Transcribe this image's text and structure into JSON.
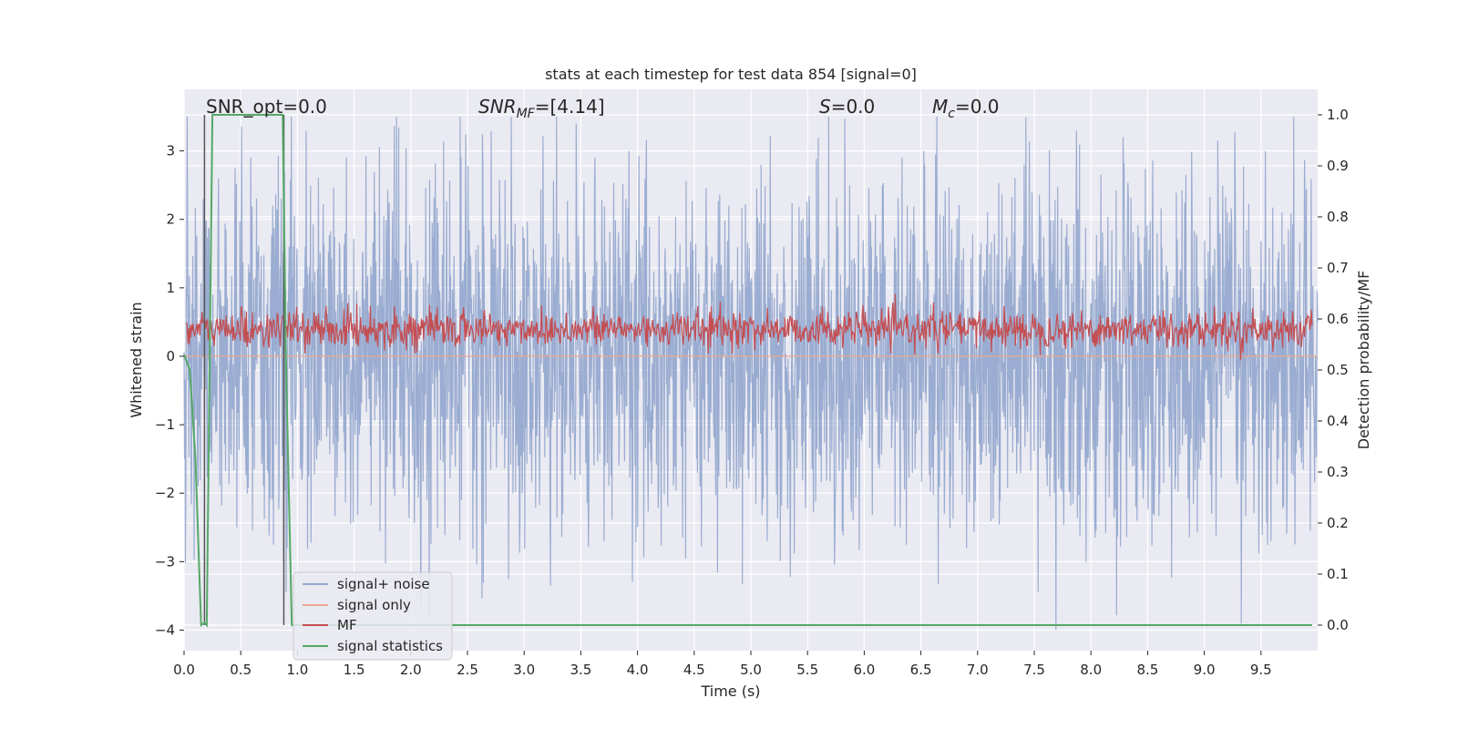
{
  "chart_data": {
    "type": "line",
    "title": "stats at each timestep for test data 854 [signal=0]",
    "xlabel": "Time (s)",
    "ylabel_left": "Whitened strain",
    "ylabel_right": "Detection probability/MF",
    "xlim": [
      0.0,
      10.0
    ],
    "ylim_left": [
      -4.3,
      3.9
    ],
    "ylim_right": [
      -0.05,
      1.05
    ],
    "xticks": [
      "0.0",
      "0.5",
      "1.0",
      "1.5",
      "2.0",
      "2.5",
      "3.0",
      "3.5",
      "4.0",
      "4.5",
      "5.0",
      "5.5",
      "6.0",
      "6.5",
      "7.0",
      "7.5",
      "8.0",
      "8.5",
      "9.0",
      "9.5"
    ],
    "xtick_values": [
      0,
      0.5,
      1,
      1.5,
      2,
      2.5,
      3,
      3.5,
      4,
      4.5,
      5,
      5.5,
      6,
      6.5,
      7,
      7.5,
      8,
      8.5,
      9,
      9.5
    ],
    "yticks_left": [
      "3",
      "2",
      "1",
      "0",
      "−1",
      "−2",
      "−3",
      "−4"
    ],
    "ytick_values_left": [
      3,
      2,
      1,
      0,
      -1,
      -2,
      -3,
      -4
    ],
    "yticks_right": [
      "1.0",
      "0.9",
      "0.8",
      "0.7",
      "0.6",
      "0.5",
      "0.4",
      "0.3",
      "0.2",
      "0.1",
      "0.0"
    ],
    "ytick_values_right": [
      1.0,
      0.9,
      0.8,
      0.7,
      0.6,
      0.5,
      0.4,
      0.3,
      0.2,
      0.1,
      0.0
    ],
    "annotations": {
      "snr_opt": "SNR_opt=0.0",
      "snr_mf_main": "SNR",
      "snr_mf_sub": "MF",
      "snr_mf_value": "=[4.14]",
      "s_main": "S",
      "s_value": "=0.0",
      "mc_main": "M",
      "mc_sub": "c",
      "mc_value": "=0.0"
    },
    "legend_placement": "lower-left",
    "grid": true,
    "series": [
      {
        "name": "signal+ noise",
        "color": "#96a9cf",
        "axis": "left",
        "description_range": [
          -4.0,
          3.5
        ],
        "noise_amplitude": 1.3
      },
      {
        "name": "signal only",
        "color": "#e8a98e",
        "axis": "left",
        "x": [
          0.0,
          10.0
        ],
        "y": [
          0.0,
          0.0
        ]
      },
      {
        "name": "MF",
        "color": "#c44e52",
        "axis": "right",
        "range": [
          0.54,
          0.62
        ]
      },
      {
        "name": "signal statistics",
        "color": "#55a868",
        "axis": "right",
        "x": [
          0.0,
          0.05,
          0.1,
          0.15,
          0.18,
          0.2,
          0.25,
          0.3,
          0.5,
          0.7,
          0.87,
          0.9,
          0.95,
          1.0,
          2.0,
          5.0,
          9.95
        ],
        "y": [
          0.53,
          0.5,
          0.33,
          0.0,
          0.005,
          0.0,
          1.0,
          1.0,
          1.0,
          1.0,
          1.0,
          0.5,
          0.0,
          0.0,
          0.0,
          0.0,
          0.0
        ]
      }
    ],
    "vlines": [
      0.18,
      0.88
    ],
    "vline_color": "#555555"
  }
}
